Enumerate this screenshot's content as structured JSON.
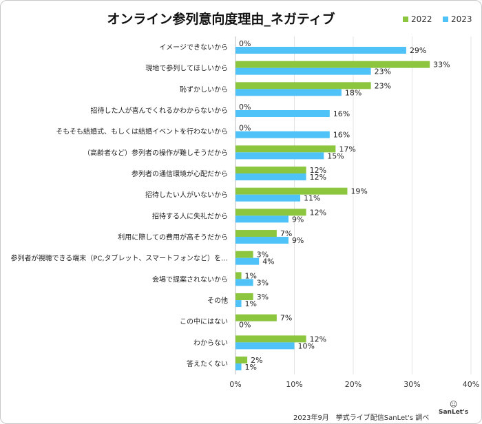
{
  "chart_data": {
    "type": "bar",
    "orientation": "horizontal",
    "title": "オンライン参列意向度理由_ネガティブ",
    "categories": [
      "イメージできないから",
      "現地で参列してほしいから",
      "恥ずかしいから",
      "招待した人が喜んでくれるかわからないから",
      "そもそも結婚式、もしくは結婚イベントを行わないから",
      "（高齢者など）参列者の操作が難しそうだから",
      "参列者の通信環境が心配だから",
      "招待したい人がいないから",
      "招待する人に失礼だから",
      "利用に際しての費用が高そうだから",
      "参列者が視聴できる端末（PC,タブレット、スマートフォンなど）を…",
      "会場で提案されないから",
      "その他",
      "この中にはない",
      "わからない",
      "答えたくない"
    ],
    "series": [
      {
        "name": "2022",
        "color": "#8cc63e",
        "values": [
          0,
          33,
          23,
          0,
          0,
          17,
          12,
          19,
          12,
          7,
          3,
          1,
          3,
          7,
          12,
          2
        ]
      },
      {
        "name": "2023",
        "color": "#4fc3f7",
        "values": [
          29,
          23,
          18,
          16,
          16,
          15,
          12,
          11,
          9,
          9,
          4,
          3,
          1,
          0,
          10,
          1
        ]
      }
    ],
    "xlim": [
      0,
      40
    ],
    "xticks": [
      "0%",
      "10%",
      "20%",
      "30%",
      "40%"
    ],
    "grid": true,
    "legend": "top-right",
    "value_suffix": "%"
  },
  "footer": "2023年9月　挙式ライブ配信SanLet's 調べ",
  "logo": "SanLet's"
}
